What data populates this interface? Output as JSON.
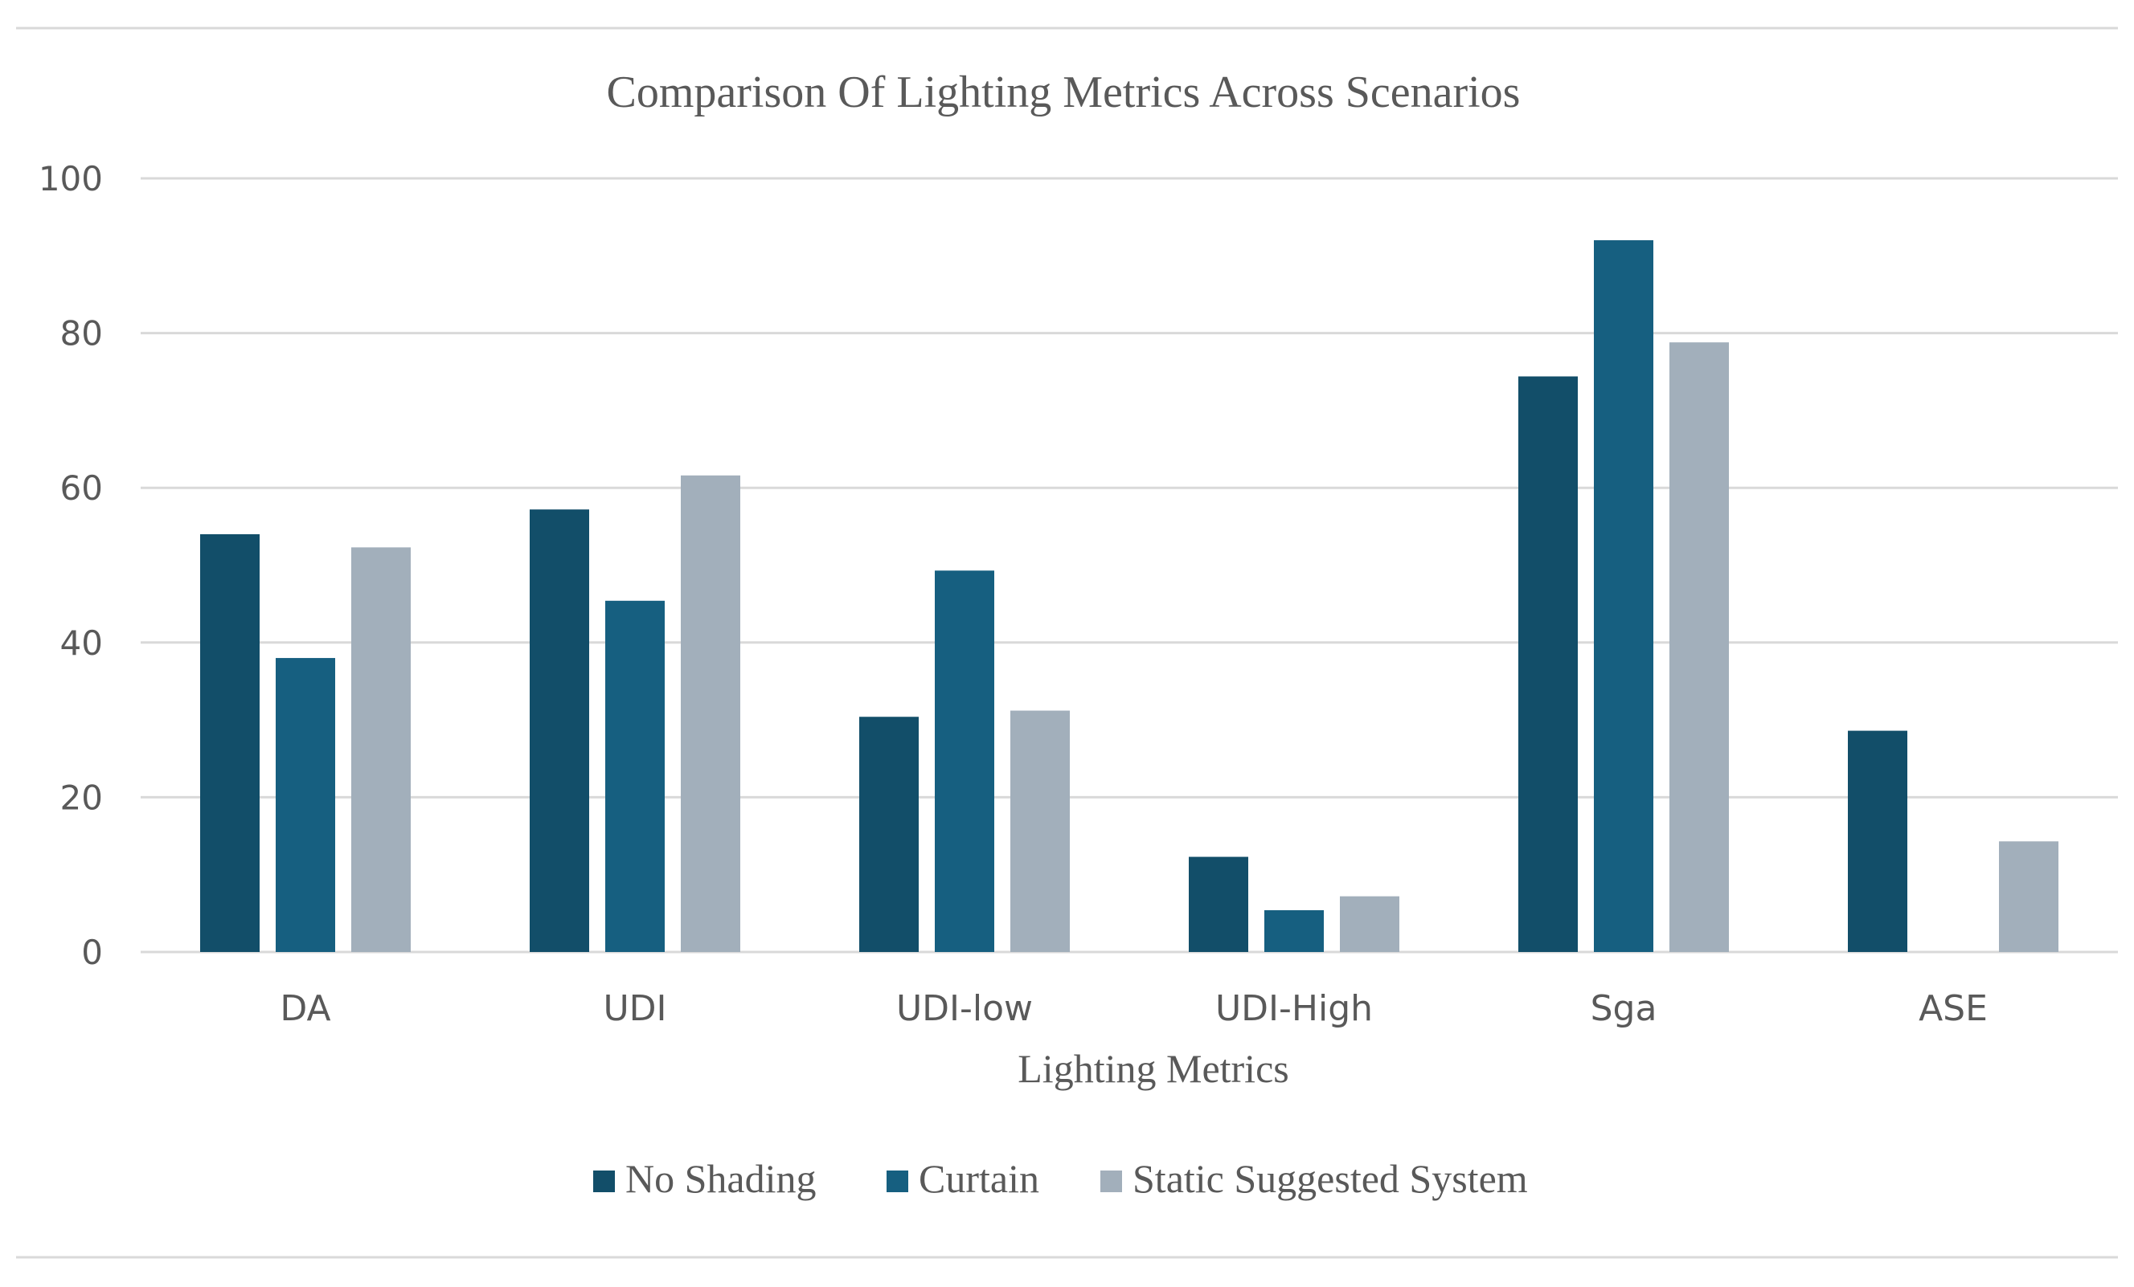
{
  "chart_data": {
    "type": "bar",
    "title": "Comparison Of Lighting Metrics Across Scenarios",
    "xlabel": "Lighting Metrics",
    "ylabel": "",
    "ylim": [
      0,
      100
    ],
    "yticks": [
      "0",
      "20",
      "40",
      "60",
      "80",
      "100"
    ],
    "grid": true,
    "legend_position": "bottom",
    "categories": [
      "DA",
      "UDI",
      "UDI-low",
      "UDI-High",
      "Sga",
      "ASE"
    ],
    "series": [
      {
        "name": "No Shading",
        "color": "#124e69",
        "values": [
          54,
          57.2,
          30.4,
          12.3,
          74.4,
          28.6
        ]
      },
      {
        "name": "Curtain",
        "color": "#165f80",
        "values": [
          38,
          45.4,
          49.3,
          5.4,
          92,
          0
        ]
      },
      {
        "name": "Static Suggested System",
        "color": "#a2afbb",
        "values": [
          52.3,
          61.6,
          31.2,
          7.2,
          78.8,
          14.3
        ]
      }
    ]
  }
}
